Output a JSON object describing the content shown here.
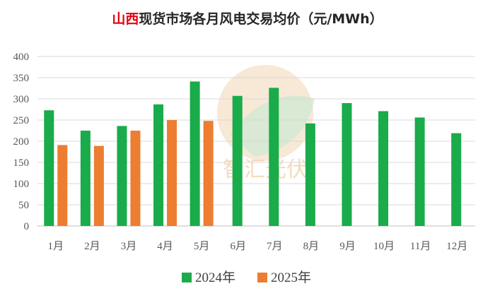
{
  "title": {
    "highlight": "山西",
    "rest": "现货市场各月风电交易均价（元/MWh）"
  },
  "watermark": {
    "text": "智汇光伏"
  },
  "colors": {
    "series_2024": "#1aab4a",
    "series_2025": "#ed7d31",
    "highlight": "#e3000f"
  },
  "chart_data": {
    "type": "bar",
    "title": "山西现货市场各月风电交易均价（元/MWh）",
    "categories": [
      "1月",
      "2月",
      "3月",
      "4月",
      "5月",
      "6月",
      "7月",
      "8月",
      "9月",
      "10月",
      "11月",
      "12月"
    ],
    "series": [
      {
        "name": "2024年",
        "color": "#1aab4a",
        "values": [
          273,
          225,
          236,
          287,
          341,
          307,
          326,
          242,
          290,
          271,
          256,
          219
        ]
      },
      {
        "name": "2025年",
        "color": "#ed7d31",
        "values": [
          191,
          189,
          225,
          250,
          248,
          null,
          null,
          null,
          null,
          null,
          null,
          null
        ]
      }
    ],
    "ylim": [
      0,
      400
    ],
    "yticks": [
      0,
      50,
      100,
      150,
      200,
      250,
      300,
      350,
      400
    ],
    "grid": true,
    "legend": "bottom"
  }
}
